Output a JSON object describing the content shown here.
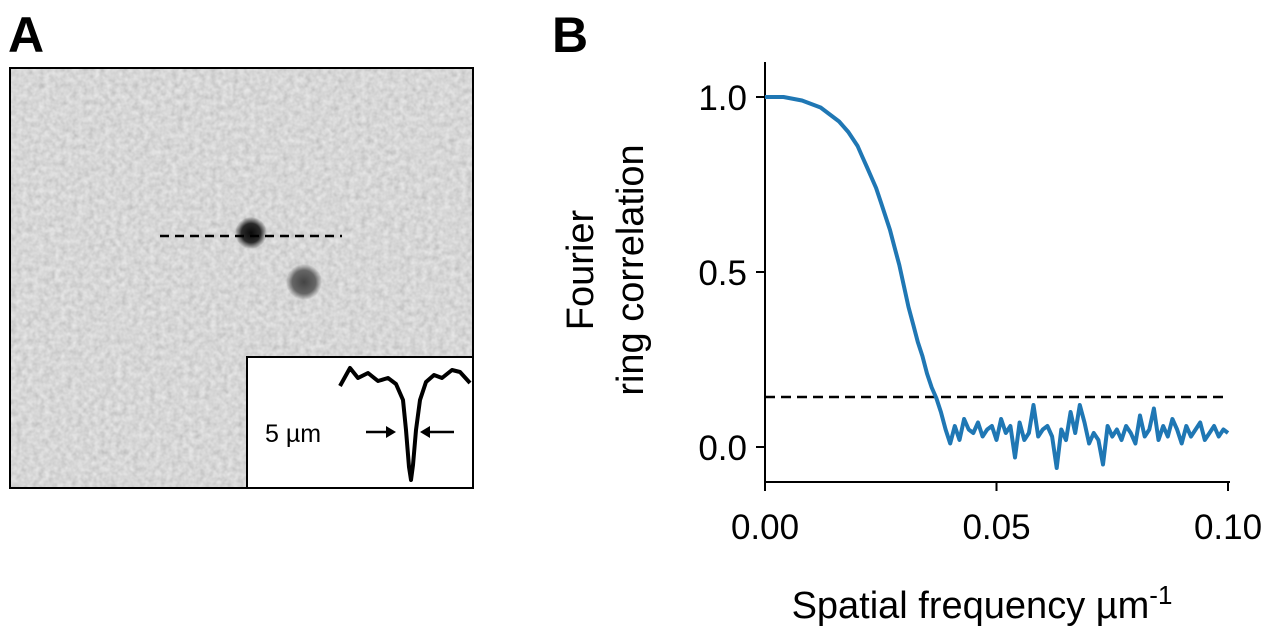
{
  "panel_a": {
    "letter": "A",
    "inset": {
      "scale_label": "5 µm"
    }
  },
  "panel_b": {
    "letter": "B"
  },
  "chart_data": {
    "type": "line",
    "title": "",
    "xlabel": "Spatial frequency µm",
    "xlabel_superscript": "-1",
    "ylabel_line1": "Fourier",
    "ylabel_line2": "ring correlation",
    "xlim": [
      0.0,
      0.1
    ],
    "ylim": [
      -0.1,
      1.1
    ],
    "xticks": [
      0.0,
      0.05,
      0.1
    ],
    "xtick_labels": [
      "0.00",
      "0.05",
      "0.10"
    ],
    "yticks": [
      0.0,
      0.5,
      1.0
    ],
    "ytick_labels": [
      "0.0",
      "0.5",
      "1.0"
    ],
    "grid": false,
    "threshold": 0.143,
    "series": [
      {
        "color": "#1f77b4",
        "x": [
          0.0,
          0.004,
          0.008,
          0.012,
          0.016,
          0.018,
          0.02,
          0.021,
          0.022,
          0.023,
          0.024,
          0.025,
          0.026,
          0.027,
          0.028,
          0.029,
          0.03,
          0.031,
          0.032,
          0.033,
          0.034,
          0.035,
          0.036,
          0.037,
          0.038,
          0.039,
          0.04,
          0.041,
          0.042,
          0.043,
          0.044,
          0.045,
          0.046,
          0.047,
          0.048,
          0.049,
          0.05,
          0.051,
          0.052,
          0.053,
          0.054,
          0.055,
          0.056,
          0.057,
          0.058,
          0.059,
          0.06,
          0.061,
          0.062,
          0.063,
          0.064,
          0.065,
          0.066,
          0.067,
          0.068,
          0.069,
          0.07,
          0.071,
          0.072,
          0.073,
          0.074,
          0.075,
          0.076,
          0.077,
          0.078,
          0.079,
          0.08,
          0.081,
          0.082,
          0.083,
          0.084,
          0.085,
          0.086,
          0.087,
          0.088,
          0.089,
          0.09,
          0.091,
          0.092,
          0.093,
          0.094,
          0.095,
          0.096,
          0.097,
          0.098,
          0.099,
          0.1
        ],
        "y": [
          1.0,
          1.0,
          0.99,
          0.97,
          0.93,
          0.9,
          0.86,
          0.83,
          0.8,
          0.77,
          0.74,
          0.7,
          0.66,
          0.62,
          0.57,
          0.52,
          0.46,
          0.4,
          0.35,
          0.3,
          0.26,
          0.21,
          0.17,
          0.14,
          0.1,
          0.05,
          0.01,
          0.06,
          0.02,
          0.08,
          0.05,
          0.04,
          0.07,
          0.03,
          0.05,
          0.06,
          0.02,
          0.08,
          0.04,
          0.06,
          -0.03,
          0.07,
          0.02,
          0.04,
          0.12,
          0.03,
          0.05,
          0.06,
          0.03,
          -0.06,
          0.05,
          0.02,
          0.1,
          0.04,
          0.12,
          0.07,
          0.01,
          0.04,
          0.02,
          -0.05,
          0.06,
          0.03,
          0.05,
          0.02,
          0.06,
          0.04,
          0.01,
          0.09,
          0.03,
          0.05,
          0.11,
          0.02,
          0.06,
          0.03,
          0.08,
          0.05,
          0.01,
          0.06,
          0.03,
          0.05,
          0.07,
          0.02,
          0.04,
          0.06,
          0.03,
          0.05,
          0.04
        ]
      }
    ]
  }
}
